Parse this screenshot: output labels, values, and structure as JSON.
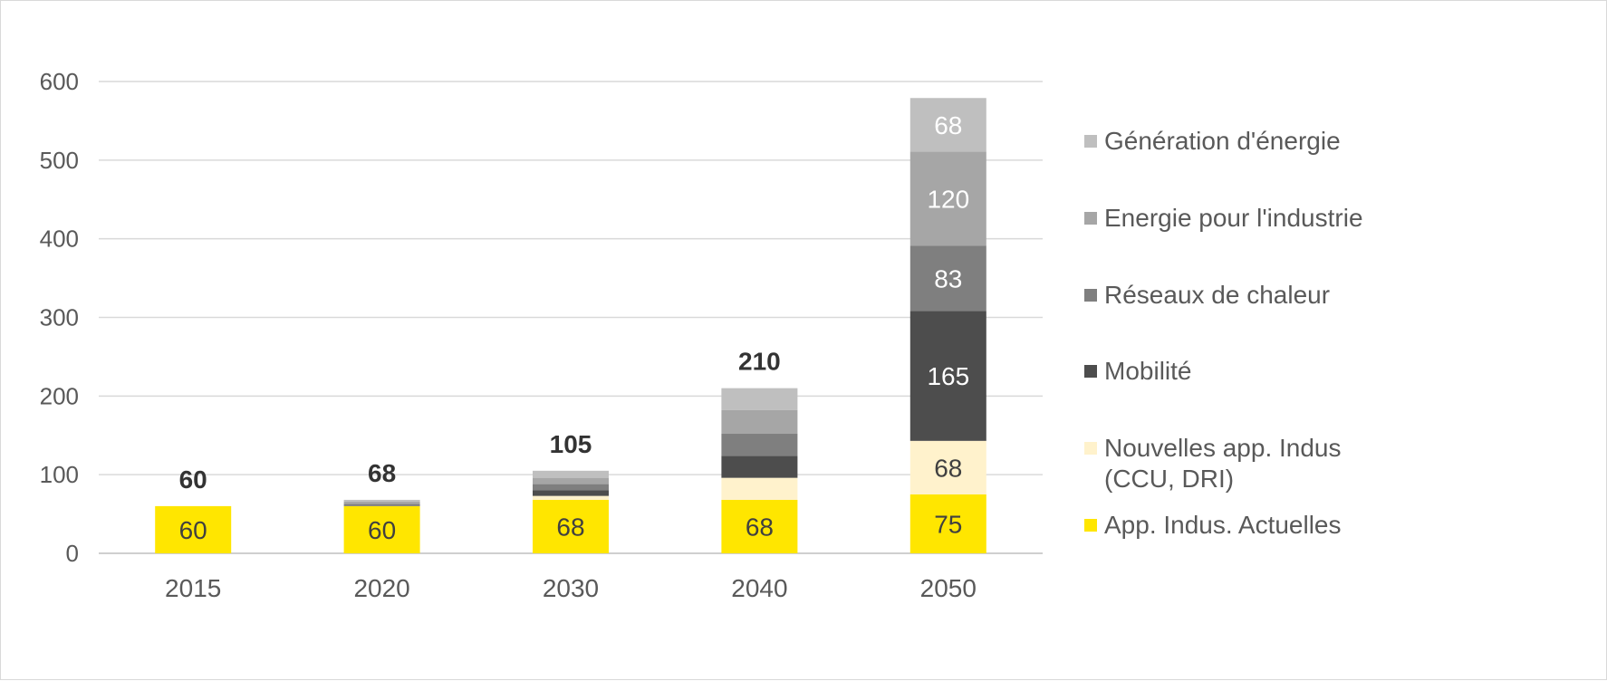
{
  "chart_data": {
    "type": "bar",
    "stacked": true,
    "title": "",
    "xlabel": "",
    "ylabel": "",
    "ylim": [
      0,
      600
    ],
    "y_ticks": [
      0,
      100,
      200,
      300,
      400,
      500,
      600
    ],
    "grid": true,
    "legend_position": "right",
    "categories": [
      "2015",
      "2020",
      "2030",
      "2040",
      "2050"
    ],
    "totals": [
      60,
      68,
      105,
      210,
      null
    ],
    "series": [
      {
        "name": "App. Indus. Actuelles",
        "color": "#ffe600",
        "values": [
          60,
          60,
          68,
          68,
          75
        ],
        "labels": [
          "60",
          "60",
          "68",
          "68",
          "75"
        ]
      },
      {
        "name": "Nouvelles app. Indus\n(CCU, DRI)",
        "color": "#fff2cc",
        "values": [
          0,
          0,
          5,
          28,
          68
        ],
        "labels": [
          "",
          "",
          "",
          "",
          "68"
        ]
      },
      {
        "name": "Mobilité",
        "color": "#4d4d4d",
        "values": [
          0,
          0,
          7,
          28,
          165
        ],
        "labels": [
          "",
          "",
          "",
          "",
          "165"
        ]
      },
      {
        "name": "Réseaux de chaleur",
        "color": "#7f7f7f",
        "values": [
          0,
          3,
          8,
          28,
          83
        ],
        "labels": [
          "",
          "",
          "",
          "",
          "83"
        ]
      },
      {
        "name": "Energie pour l'industrie",
        "color": "#a6a6a6",
        "values": [
          0,
          3,
          8,
          30,
          120
        ],
        "labels": [
          "",
          "",
          "",
          "",
          "120"
        ]
      },
      {
        "name": "Génération d'énergie",
        "color": "#bfbfbf",
        "values": [
          0,
          2,
          9,
          28,
          68
        ],
        "labels": [
          "",
          "",
          "",
          "",
          "68"
        ]
      }
    ],
    "legend_order": [
      5,
      4,
      3,
      2,
      1,
      0
    ]
  }
}
